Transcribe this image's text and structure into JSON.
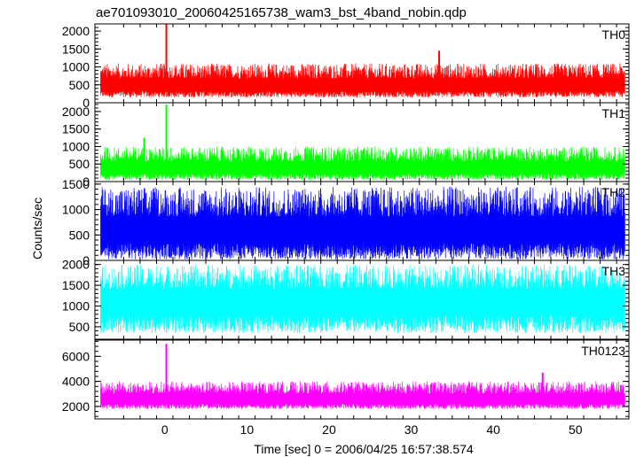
{
  "chart_data": {
    "type": "line",
    "title": "ae701093010_20060425165738_wam3_bst_4band_nobin.qdp",
    "xlabel": "Time [sec] 0 = 2006/04/25 16:57:38.574",
    "ylabel": "Counts/sec",
    "xlim": [
      -8.5,
      56.5
    ],
    "x_ticks": [
      0,
      10,
      20,
      30,
      40,
      50
    ],
    "grid": false,
    "legend": "none",
    "panels": [
      {
        "name": "TH0",
        "color": "#ff0000",
        "ylim": [
          0,
          2200
        ],
        "y_ticks": [
          0,
          500,
          1000,
          1500,
          2000
        ],
        "x_range": [
          -7.8,
          56
        ],
        "baseline_mean": 450,
        "noise_low": 150,
        "noise_high": 1100,
        "spikes": [
          {
            "x": 0.2,
            "y": 2200
          },
          {
            "x": 33.4,
            "y": 1450
          }
        ]
      },
      {
        "name": "TH1",
        "color": "#00ff00",
        "ylim": [
          0,
          2250
        ],
        "y_ticks": [
          0,
          500,
          1000,
          1500,
          2000
        ],
        "x_range": [
          -7.8,
          56
        ],
        "baseline_mean": 350,
        "noise_low": 50,
        "noise_high": 1000,
        "spikes": [
          {
            "x": 0.2,
            "y": 2200
          },
          {
            "x": -2.5,
            "y": 1250
          }
        ]
      },
      {
        "name": "TH2",
        "color": "#0000ff",
        "ylim": [
          0,
          1550
        ],
        "y_ticks": [
          0,
          500,
          1000,
          1500
        ],
        "x_range": [
          -7.8,
          56
        ],
        "baseline_mean": 550,
        "noise_low": 20,
        "noise_high": 1450,
        "spikes": []
      },
      {
        "name": "TH3",
        "color": "#00ffff",
        "ylim": [
          200,
          2100
        ],
        "y_ticks": [
          500,
          1000,
          1500,
          2000
        ],
        "x_range": [
          -7.8,
          56
        ],
        "baseline_mean": 1100,
        "noise_low": 350,
        "noise_high": 2000,
        "spikes": []
      },
      {
        "name": "TH0123",
        "color": "#ff00ff",
        "ylim": [
          1000,
          7300
        ],
        "y_ticks": [
          2000,
          4000,
          6000
        ],
        "x_range": [
          -7.8,
          56
        ],
        "baseline_mean": 2500,
        "noise_low": 1800,
        "noise_high": 4000,
        "spikes": [
          {
            "x": 0.2,
            "y": 7000
          },
          {
            "x": 46,
            "y": 4700
          }
        ]
      }
    ]
  }
}
